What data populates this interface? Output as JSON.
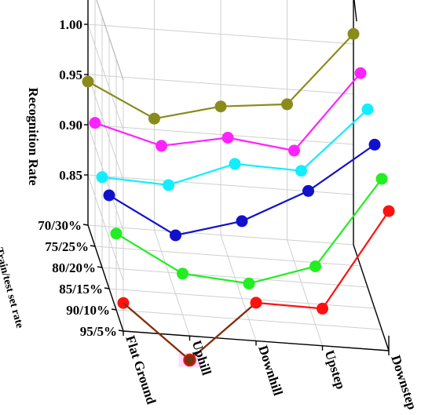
{
  "chart_data": {
    "type": "line",
    "view": "3d",
    "categories": [
      "Flat Ground",
      "Uphill",
      "Downhill",
      "Upstep",
      "Downstep"
    ],
    "depth_label": "Train/test set rate",
    "depth_ticks": [
      "70/30%",
      "75/25%",
      "80/20%",
      "85/15%",
      "90/10%",
      "95/5%"
    ],
    "ylabel": "Recognition Rate",
    "ylim": [
      0.8,
      1.05
    ],
    "yticks": [
      "0.85",
      "0.90",
      "0.95",
      "1.00",
      "1.05"
    ],
    "grid": true,
    "series": [
      {
        "color": "#8b8b1c",
        "values": [
          0.943,
          0.911,
          0.928,
          0.935,
          1.01
        ]
      },
      {
        "color": "#ff22ff",
        "values": [
          0.923,
          0.905,
          0.918,
          0.91,
          0.992
        ]
      },
      {
        "color": "#11eeff",
        "values": [
          0.89,
          0.887,
          0.913,
          0.911,
          0.977
        ]
      },
      {
        "color": "#1111cc",
        "values": [
          0.893,
          0.858,
          0.877,
          0.912,
          0.963
        ]
      },
      {
        "color": "#22ee22",
        "values": [
          0.876,
          0.841,
          0.836,
          0.858,
          0.95
        ]
      },
      {
        "color": "#ff1111",
        "values": [
          0.828,
          0.776,
          0.838,
          0.837,
          0.939
        ]
      }
    ],
    "highlight": {
      "series": 5,
      "category": 1,
      "color": "#7a3310"
    }
  }
}
